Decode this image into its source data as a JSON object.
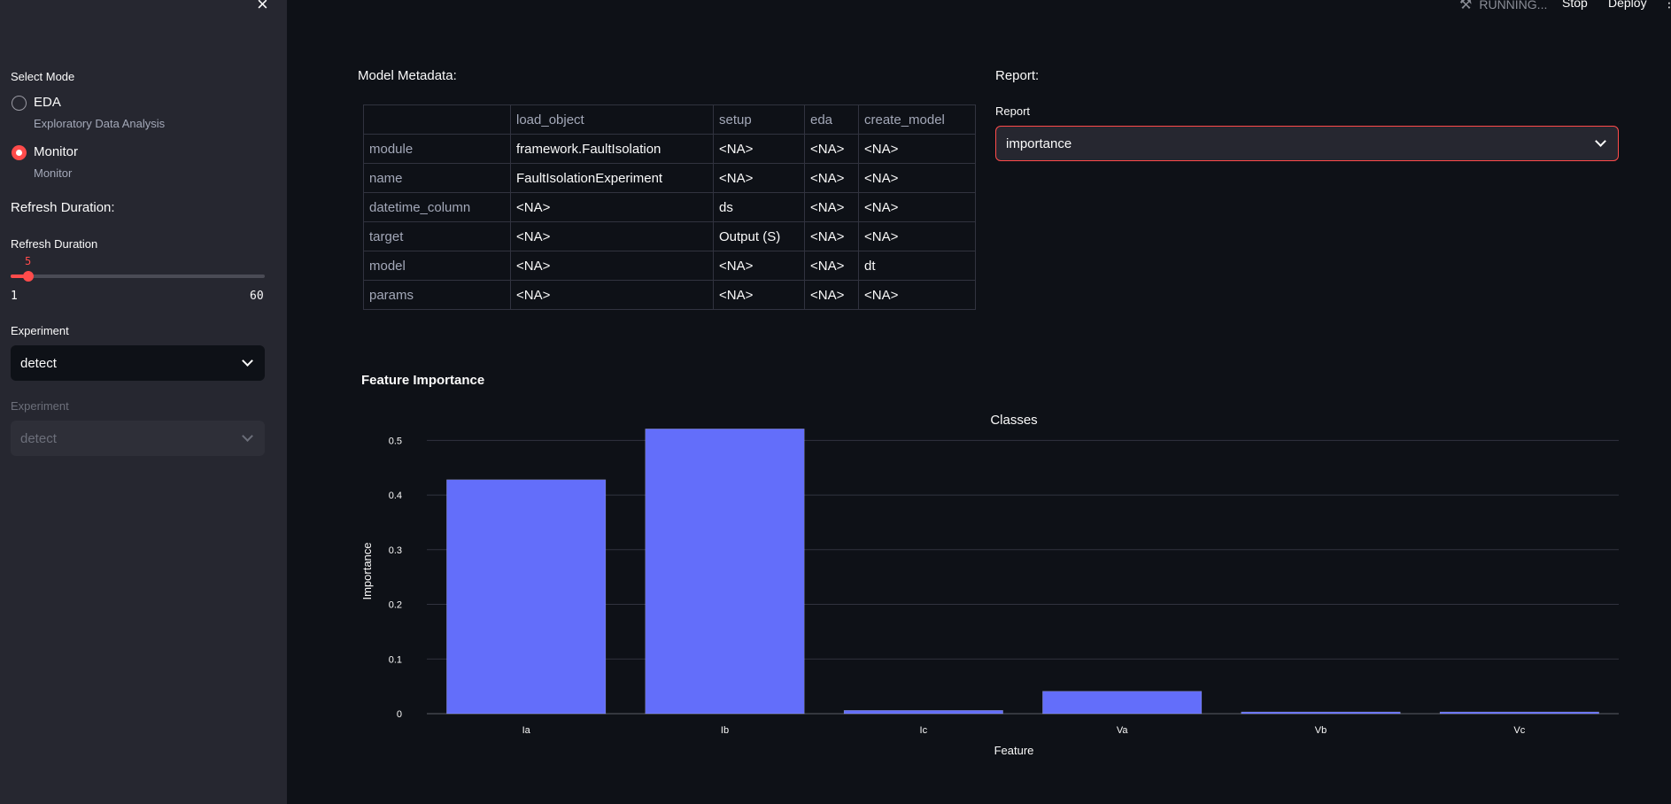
{
  "sidebar": {
    "close_glyph": "×",
    "select_mode_label": "Select Mode",
    "modes": [
      {
        "title": "EDA",
        "subtitle": "Exploratory Data Analysis",
        "selected": false
      },
      {
        "title": "Monitor",
        "subtitle": "Monitor",
        "selected": true
      }
    ],
    "refresh_heading": "Refresh Duration:",
    "refresh_label": "Refresh Duration",
    "refresh_value": "5",
    "refresh_min": "1",
    "refresh_max": "60",
    "experiment_label": "Experiment",
    "experiment_value": "detect",
    "experiment2_label": "Experiment",
    "experiment2_value": "detect"
  },
  "header": {
    "status": "RUNNING...",
    "stop": "Stop",
    "deploy": "Deploy",
    "menu_glyph": "⋮"
  },
  "main": {
    "metadata_title": "Model Metadata:",
    "report_title": "Report:",
    "report_label": "Report",
    "report_value": "importance",
    "table": {
      "columns": [
        "",
        "load_object",
        "setup",
        "eda",
        "create_model"
      ],
      "rows": [
        [
          "module",
          "framework.FaultIsolation",
          "<NA>",
          "<NA>",
          "<NA>"
        ],
        [
          "name",
          "FaultIsolationExperiment",
          "<NA>",
          "<NA>",
          "<NA>"
        ],
        [
          "datetime_column",
          "<NA>",
          "ds",
          "<NA>",
          "<NA>"
        ],
        [
          "target",
          "<NA>",
          "Output (S)",
          "<NA>",
          "<NA>"
        ],
        [
          "model",
          "<NA>",
          "<NA>",
          "<NA>",
          "dt"
        ],
        [
          "params",
          "<NA>",
          "<NA>",
          "<NA>",
          "<NA>"
        ]
      ]
    },
    "feature_heading": "Feature Importance"
  },
  "colors": {
    "accent": "#ff4b4b",
    "bar": "#636efa",
    "background": "#0e1117",
    "sidebar": "#262730"
  },
  "chart_data": {
    "type": "bar",
    "title": "Classes",
    "xlabel": "Feature",
    "ylabel": "Importance",
    "categories": [
      "Ia",
      "Ib",
      "Ic",
      "Va",
      "Vb",
      "Vc"
    ],
    "values": [
      0.428,
      0.521,
      0.006,
      0.041,
      0.002,
      0.003
    ],
    "ylim": [
      0,
      0.52
    ],
    "yticks": [
      "0",
      "0.1",
      "0.2",
      "0.3",
      "0.4",
      "0.5"
    ],
    "grid": true
  }
}
